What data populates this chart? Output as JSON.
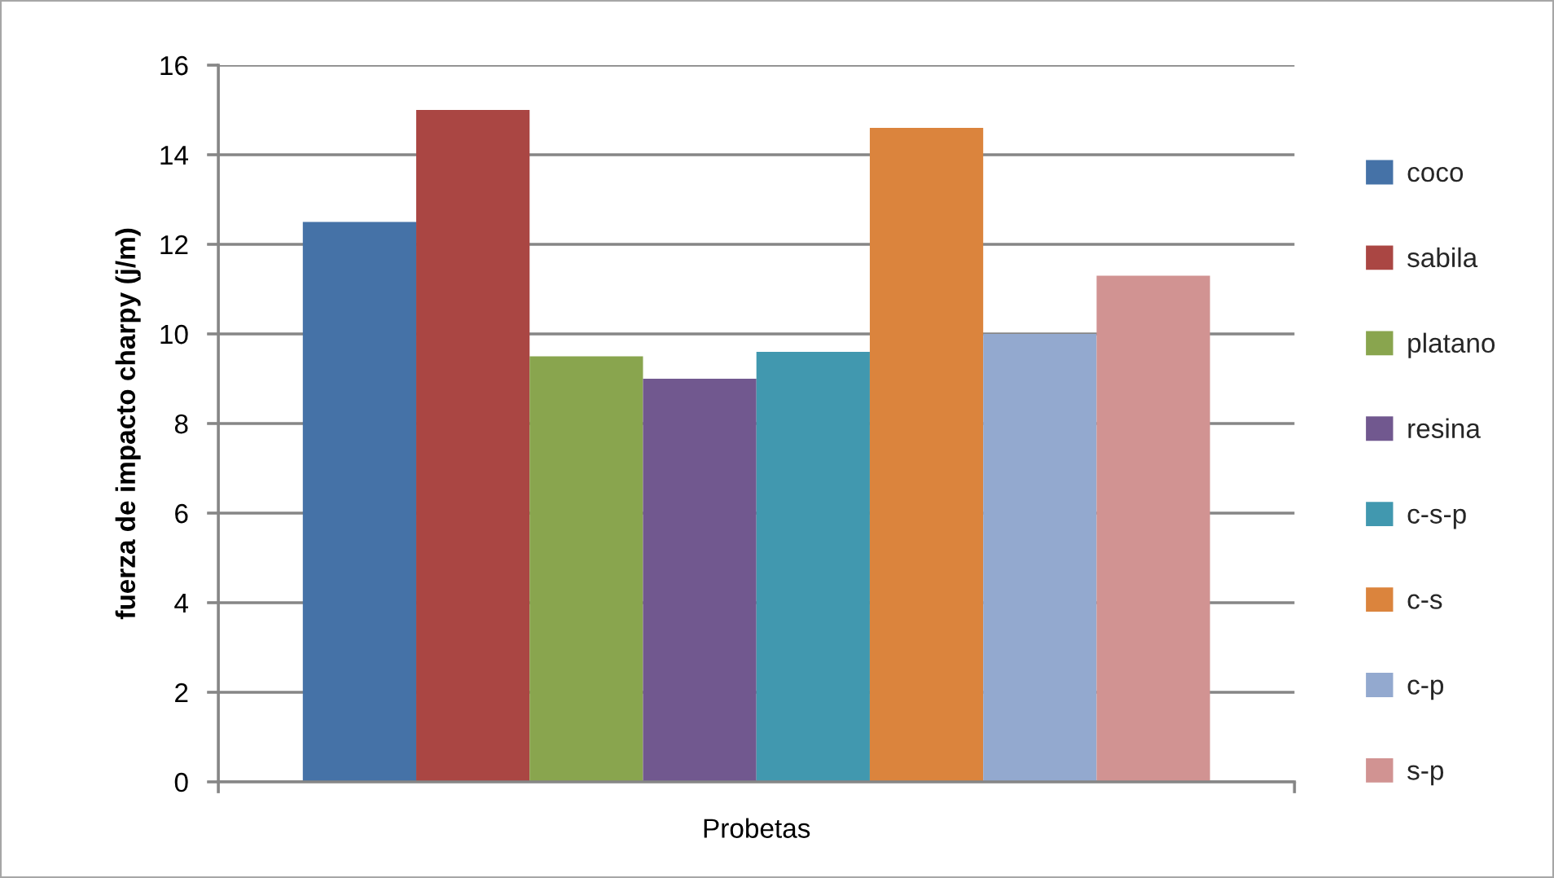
{
  "chart_data": {
    "type": "bar",
    "ylabel": "fuerza de impacto charpy (j/m)",
    "categories": [
      "Probetas"
    ],
    "series": [
      {
        "name": "coco",
        "color": "#4572a7",
        "values": [
          12.5
        ]
      },
      {
        "name": "sabila",
        "color": "#aa4643",
        "values": [
          15.0
        ]
      },
      {
        "name": "platano",
        "color": "#89a54e",
        "values": [
          9.5
        ]
      },
      {
        "name": "resina",
        "color": "#71588f",
        "values": [
          9.0
        ]
      },
      {
        "name": "c-s-p",
        "color": "#4198af",
        "values": [
          9.6
        ]
      },
      {
        "name": "c-s",
        "color": "#db843d",
        "values": [
          14.6
        ]
      },
      {
        "name": "c-p",
        "color": "#93a9cf",
        "values": [
          10.0
        ]
      },
      {
        "name": "s-p",
        "color": "#d19392",
        "values": [
          11.3
        ]
      }
    ],
    "ylim": [
      0,
      16
    ],
    "yticks": [
      0,
      2,
      4,
      6,
      8,
      10,
      12,
      14,
      16
    ],
    "grid": "y",
    "legend": "right"
  }
}
